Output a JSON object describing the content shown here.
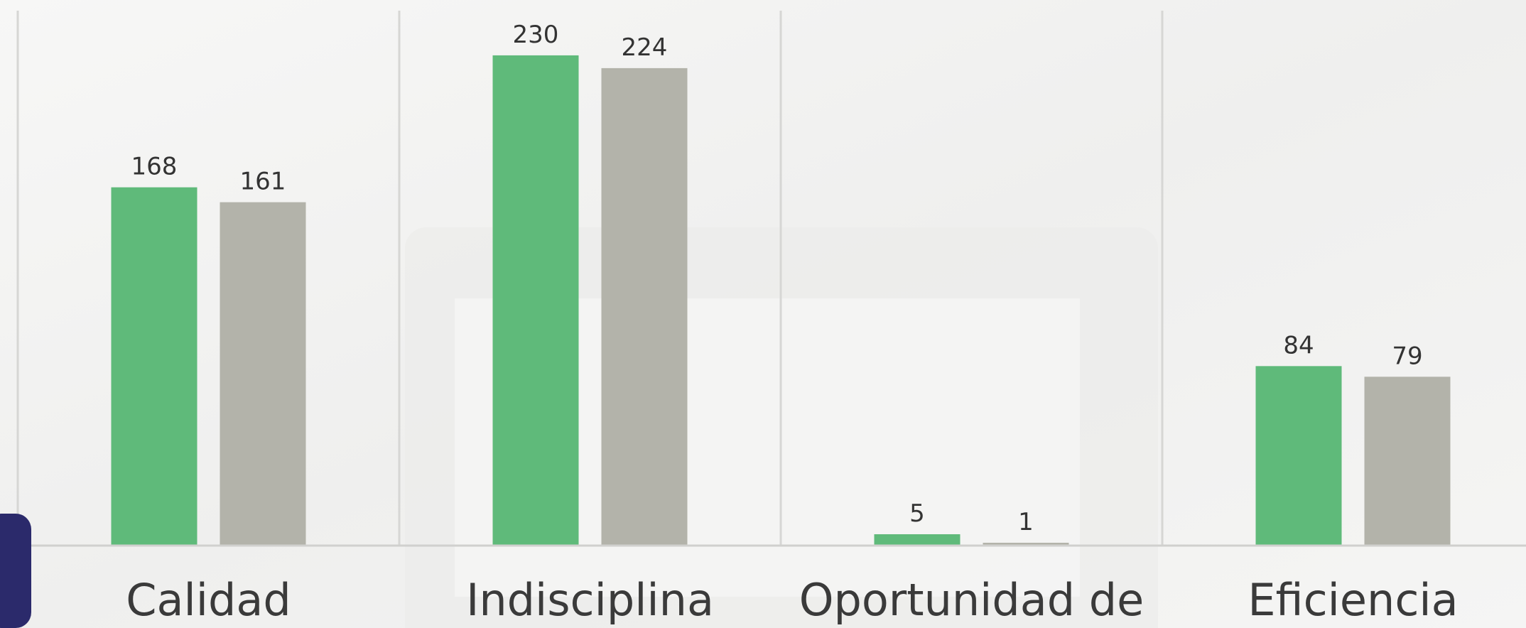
{
  "chart_data": {
    "type": "bar",
    "categories": [
      "Calidad",
      "Indisciplina",
      "Oportunidad de",
      "Eficiencia"
    ],
    "series": [
      {
        "color": "#5fba7a",
        "values": [
          168,
          230,
          5,
          84
        ]
      },
      {
        "color": "#b3b3aa",
        "values": [
          161,
          224,
          1,
          79
        ]
      }
    ]
  }
}
